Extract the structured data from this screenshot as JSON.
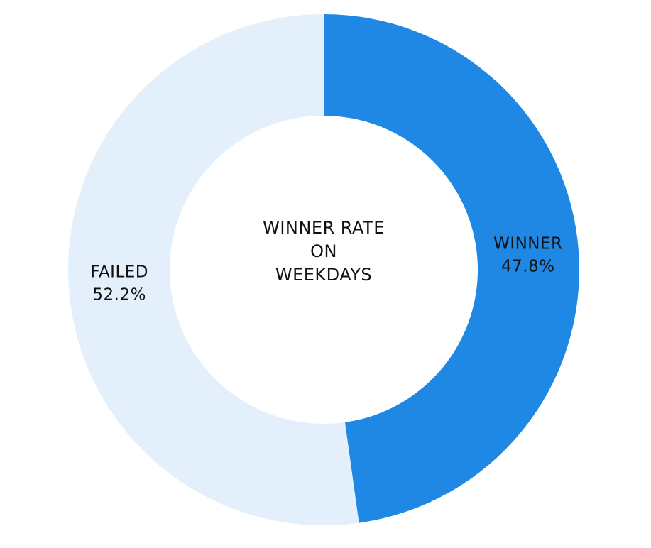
{
  "chart_data": {
    "type": "donut",
    "title": "WINNER RATE\nON\nWEEKDAYS",
    "categories": [
      "WINNER",
      "FAILED"
    ],
    "values": [
      47.8,
      52.2
    ],
    "value_labels": [
      "47.8%",
      "52.2%"
    ],
    "colors": [
      "#1f88e5",
      "#e3f0fb"
    ]
  }
}
